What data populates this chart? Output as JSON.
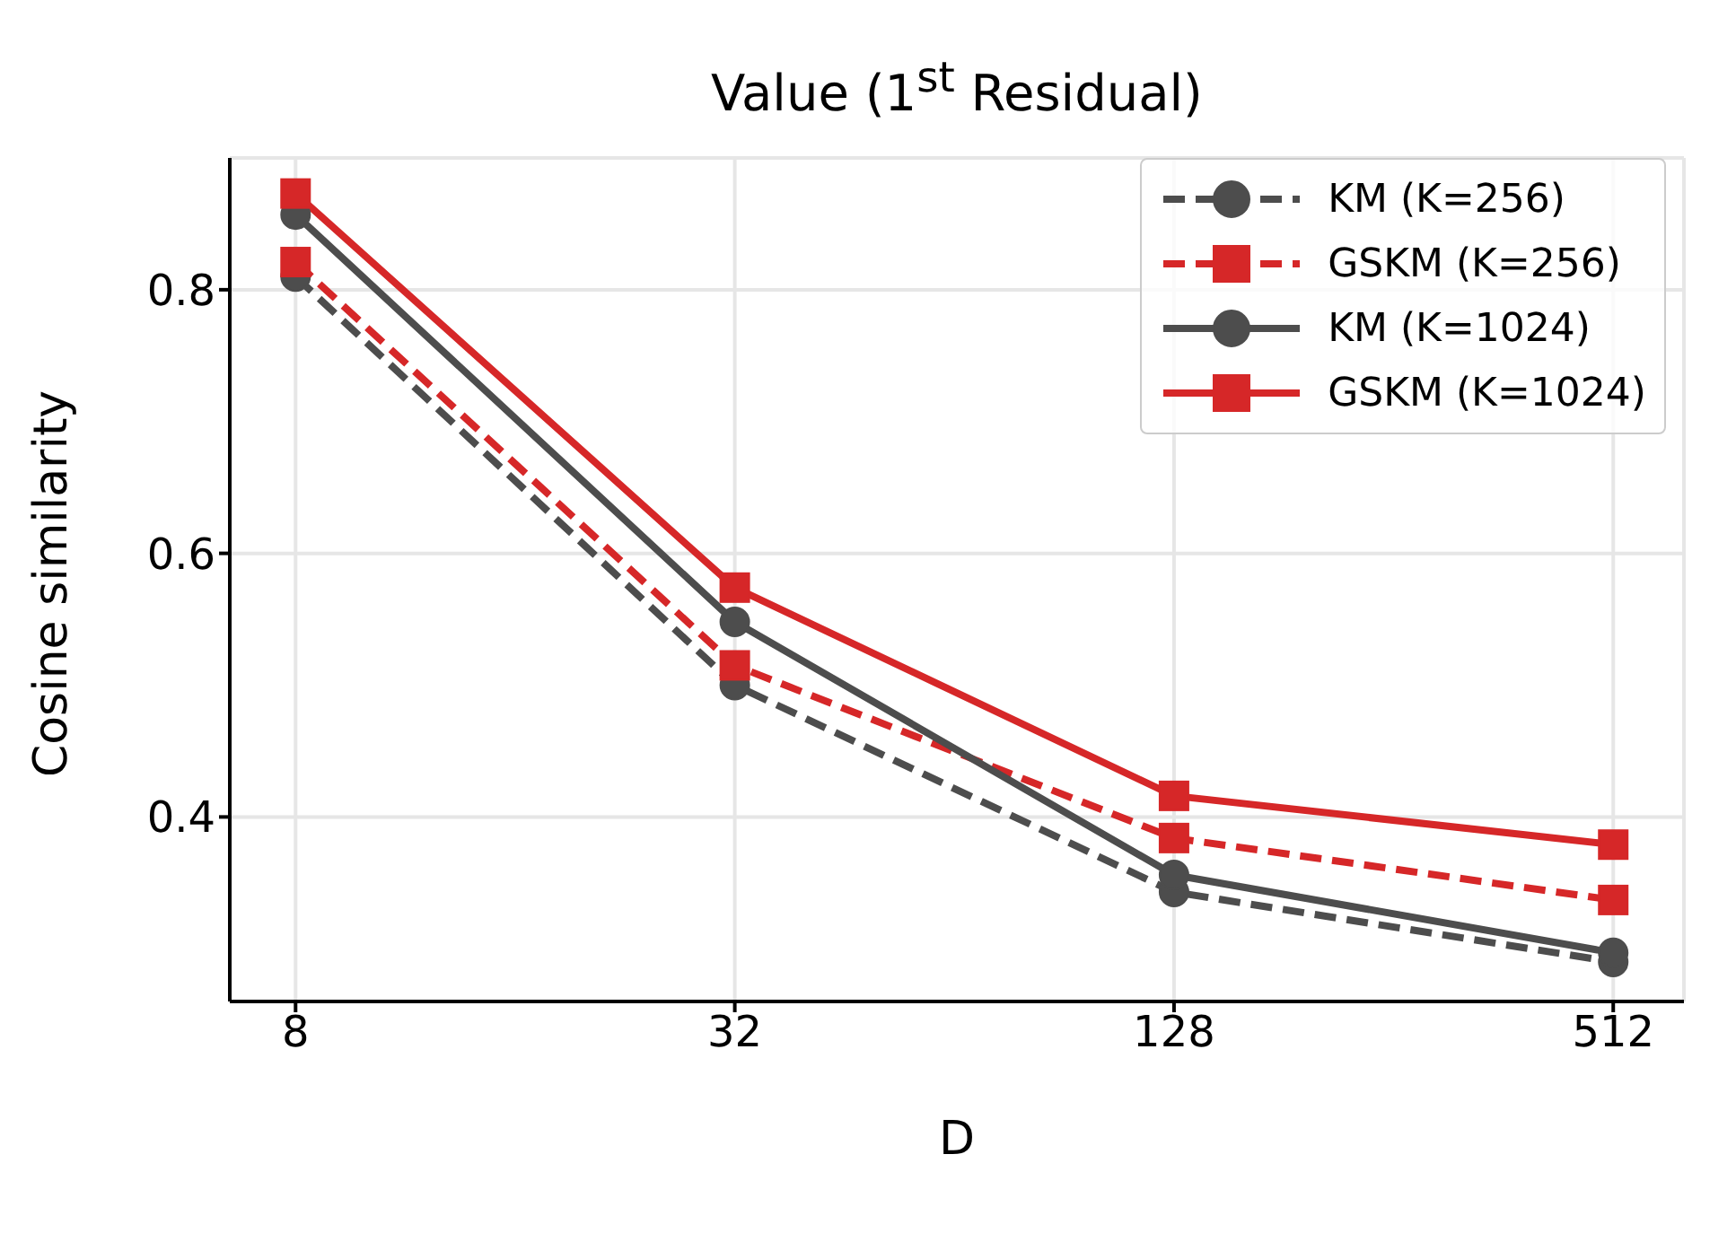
{
  "chart_data": {
    "type": "line",
    "title": "Value (1$^{st}$ Residual)",
    "xlabel": "D",
    "ylabel": "Cosine similarity",
    "x": [
      8,
      32,
      128,
      512
    ],
    "log": "x",
    "xlim": [
      6.5,
      640
    ],
    "xticks": [
      8,
      32,
      128,
      512
    ],
    "ylim": [
      0.26,
      0.9
    ],
    "yticks": [
      0.4,
      0.6,
      0.8
    ],
    "grid": true,
    "legend": "top right",
    "series": [
      {
        "name": "KM (K=256)",
        "color": "#4d4d4d",
        "values": [
          0.81,
          0.5,
          0.343,
          0.29
        ],
        "marker": "circle",
        "line_style": "dashed"
      },
      {
        "name": "GSKM (K=256)",
        "color": "#d62728",
        "values": [
          0.821,
          0.515,
          0.384,
          0.337
        ],
        "marker": "square",
        "line_style": "dashed"
      },
      {
        "name": "KM (K=1024)",
        "color": "#4d4d4d",
        "values": [
          0.857,
          0.548,
          0.356,
          0.297
        ],
        "marker": "circle",
        "line_style": "solid"
      },
      {
        "name": "GSKM (K=1024)",
        "color": "#d62728",
        "values": [
          0.873,
          0.574,
          0.416,
          0.379
        ],
        "marker": "square",
        "line_style": "solid"
      }
    ]
  }
}
